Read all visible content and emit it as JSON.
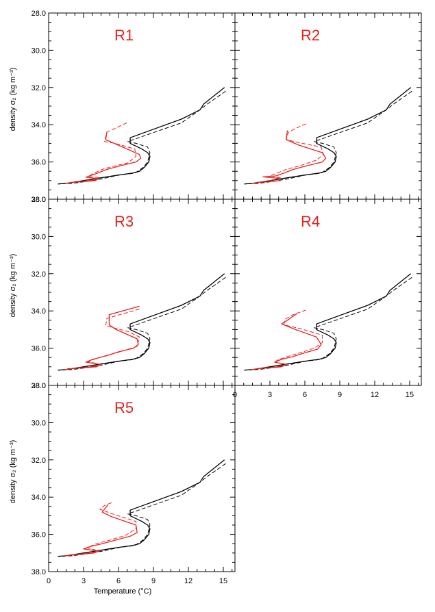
{
  "colors": {
    "black": "#000000",
    "red": "#e8201c"
  },
  "chart_data": {
    "type": "line",
    "xlabel": "Temperature (°C)",
    "ylabel": "density σ₂ (kg m⁻³)",
    "xlim": [
      0,
      16
    ],
    "ylim": [
      38.0,
      28.0
    ],
    "y_inverted": true,
    "xticks": [
      0,
      3,
      6,
      9,
      12,
      15
    ],
    "xtick_labels": [
      "0",
      "3",
      "6",
      "9",
      "12",
      "15"
    ],
    "yticks": [
      28,
      30,
      32,
      34,
      36,
      38
    ],
    "ytick_labels": [
      "28.0",
      "30.0",
      "32.0",
      "34.0",
      "36.0",
      "38.0"
    ],
    "grid": false,
    "panels": [
      {
        "title": "R1",
        "series": [
          {
            "color": "black",
            "dash": false,
            "x": [
              15.1,
              13.3,
              13.0,
              11.4,
              7.0,
              7.0,
              8.0,
              8.5,
              8.7,
              8.6,
              8.2,
              7.8,
              7.2,
              6.0,
              4.5,
              3.0,
              2.0,
              1.5,
              0.8
            ],
            "y": [
              32.0,
              32.9,
              33.2,
              33.7,
              34.7,
              35.0,
              35.3,
              35.5,
              35.7,
              36.0,
              36.3,
              36.5,
              36.6,
              36.7,
              36.85,
              37.0,
              37.1,
              37.15,
              37.18
            ]
          },
          {
            "color": "black",
            "dash": true,
            "x": [
              15.2,
              13.6,
              13.0,
              11.4,
              6.8,
              7.5,
              8.5,
              8.7,
              8.5,
              8.1,
              7.4,
              6.1,
              4.6,
              3.2,
              2.0,
              0.8
            ],
            "y": [
              32.2,
              32.9,
              33.2,
              33.9,
              34.9,
              35.0,
              35.2,
              35.5,
              36.0,
              36.3,
              36.6,
              36.7,
              36.9,
              37.05,
              37.15,
              37.18
            ]
          },
          {
            "color": "red",
            "dash": false,
            "x": [
              5.0,
              4.9,
              6.0,
              7.8,
              7.9,
              7.5,
              6.2,
              5.0,
              4.2,
              3.5,
              3.2,
              4.3,
              4.0,
              3.0,
              2.0,
              1.4
            ],
            "y": [
              34.4,
              34.8,
              35.1,
              35.6,
              35.8,
              36.0,
              36.2,
              36.4,
              36.6,
              36.75,
              36.82,
              36.9,
              37.0,
              37.05,
              37.1,
              37.15
            ]
          },
          {
            "color": "red",
            "dash": true,
            "x": [
              6.7,
              5.7,
              5.0,
              4.8,
              5.7,
              7.4,
              7.5,
              6.8,
              5.4,
              4.6,
              3.9,
              3.4,
              4.4,
              3.6,
              2.6,
              1.8
            ],
            "y": [
              33.9,
              34.2,
              34.4,
              34.9,
              35.0,
              35.3,
              35.7,
              36.05,
              36.25,
              36.4,
              36.6,
              36.78,
              36.85,
              36.98,
              37.05,
              37.1
            ]
          }
        ]
      },
      {
        "title": "R2",
        "series": [
          {
            "color": "black",
            "dash": false,
            "x": [
              15.1,
              13.3,
              13.0,
              11.4,
              7.0,
              7.0,
              8.0,
              8.5,
              8.7,
              8.6,
              8.2,
              7.8,
              7.2,
              6.0,
              4.5,
              3.0,
              2.0,
              1.5,
              0.8
            ],
            "y": [
              32.0,
              32.9,
              33.2,
              33.7,
              34.7,
              35.0,
              35.3,
              35.5,
              35.7,
              36.0,
              36.3,
              36.5,
              36.6,
              36.7,
              36.85,
              37.0,
              37.1,
              37.15,
              37.18
            ]
          },
          {
            "color": "black",
            "dash": true,
            "x": [
              15.2,
              13.6,
              13.0,
              11.4,
              6.8,
              7.5,
              8.5,
              8.7,
              8.5,
              8.1,
              7.4,
              6.1,
              4.6,
              3.2,
              2.0,
              0.8
            ],
            "y": [
              32.2,
              32.9,
              33.2,
              33.9,
              34.9,
              35.0,
              35.2,
              35.5,
              36.0,
              36.3,
              36.6,
              36.7,
              36.9,
              37.05,
              37.15,
              37.18
            ]
          },
          {
            "color": "red",
            "dash": false,
            "x": [
              4.5,
              4.4,
              5.5,
              7.5,
              7.8,
              7.5,
              6.2,
              5.0,
              4.2,
              3.5,
              2.4,
              3.8,
              3.9,
              3.0,
              2.0,
              1.4
            ],
            "y": [
              34.3,
              34.8,
              35.1,
              35.5,
              35.8,
              36.0,
              36.2,
              36.4,
              36.6,
              36.75,
              36.8,
              36.88,
              37.0,
              37.05,
              37.1,
              37.15
            ]
          },
          {
            "color": "red",
            "dash": true,
            "x": [
              6.1,
              5.2,
              4.6,
              4.4,
              5.4,
              7.4,
              7.6,
              7.0,
              5.6,
              4.4,
              3.6,
              3.0,
              3.9,
              3.4,
              2.6,
              1.8
            ],
            "y": [
              33.95,
              34.2,
              34.4,
              34.8,
              34.95,
              35.2,
              35.6,
              35.9,
              36.2,
              36.4,
              36.6,
              36.75,
              36.85,
              36.95,
              37.05,
              37.1
            ]
          }
        ]
      },
      {
        "title": "R3",
        "series": [
          {
            "color": "black",
            "dash": false,
            "x": [
              15.1,
              13.3,
              13.0,
              11.4,
              7.0,
              7.0,
              8.0,
              8.5,
              8.7,
              8.6,
              8.2,
              7.8,
              7.2,
              6.0,
              4.5,
              3.0,
              2.0,
              1.5,
              0.8
            ],
            "y": [
              32.0,
              32.9,
              33.2,
              33.7,
              34.7,
              35.0,
              35.3,
              35.5,
              35.7,
              36.0,
              36.3,
              36.5,
              36.6,
              36.7,
              36.85,
              37.0,
              37.1,
              37.15,
              37.18
            ]
          },
          {
            "color": "black",
            "dash": true,
            "x": [
              15.2,
              13.6,
              13.0,
              11.4,
              6.8,
              7.5,
              8.5,
              8.7,
              8.5,
              8.1,
              7.4,
              6.1,
              4.6,
              3.2,
              2.0,
              0.8
            ],
            "y": [
              32.2,
              32.9,
              33.2,
              33.9,
              34.9,
              35.0,
              35.2,
              35.5,
              36.0,
              36.3,
              36.6,
              36.7,
              36.9,
              37.05,
              37.15,
              37.18
            ]
          },
          {
            "color": "red",
            "dash": false,
            "x": [
              7.8,
              5.2,
              5.2,
              5.8,
              7.6,
              7.7,
              7.3,
              6.0,
              5.0,
              3.8,
              3.2,
              4.5,
              4.1,
              3.0,
              2.0,
              1.4
            ],
            "y": [
              33.75,
              34.2,
              34.75,
              35.0,
              35.5,
              35.8,
              36.0,
              36.2,
              36.4,
              36.6,
              36.75,
              36.88,
              37.0,
              37.05,
              37.1,
              37.15
            ]
          },
          {
            "color": "red",
            "dash": true,
            "x": [
              7.8,
              5.0,
              4.9,
              6.8,
              7.8,
              7.6,
              6.4,
              5.2,
              4.1,
              3.4,
              4.6,
              3.5,
              2.6,
              1.6
            ],
            "y": [
              33.9,
              34.4,
              34.8,
              35.1,
              35.4,
              35.9,
              36.15,
              36.35,
              36.55,
              36.72,
              36.9,
              37.0,
              37.05,
              37.1
            ]
          }
        ]
      },
      {
        "title": "R4",
        "series": [
          {
            "color": "black",
            "dash": false,
            "x": [
              15.1,
              13.3,
              13.0,
              11.4,
              7.0,
              7.0,
              8.0,
              8.5,
              8.7,
              8.6,
              8.2,
              7.8,
              7.2,
              6.0,
              4.5,
              3.0,
              2.0,
              1.5,
              0.8
            ],
            "y": [
              32.0,
              32.9,
              33.2,
              33.7,
              34.7,
              35.0,
              35.3,
              35.5,
              35.7,
              36.0,
              36.3,
              36.5,
              36.6,
              36.7,
              36.85,
              37.0,
              37.1,
              37.15,
              37.18
            ]
          },
          {
            "color": "black",
            "dash": true,
            "x": [
              15.2,
              13.6,
              13.0,
              11.4,
              6.8,
              7.5,
              8.5,
              8.7,
              8.5,
              8.1,
              7.4,
              6.1,
              4.6,
              3.2,
              2.0,
              0.8
            ],
            "y": [
              32.2,
              32.9,
              33.2,
              33.9,
              34.9,
              35.0,
              35.2,
              35.5,
              36.0,
              36.3,
              36.6,
              36.7,
              36.9,
              37.05,
              37.15,
              37.18
            ]
          },
          {
            "color": "red",
            "dash": false,
            "x": [
              5.3,
              4.5,
              4.0,
              5.2,
              7.0,
              7.4,
              7.1,
              6.0,
              5.0,
              4.0,
              3.4,
              4.4,
              4.0,
              3.0,
              2.0,
              1.4
            ],
            "y": [
              34.15,
              34.5,
              34.7,
              35.0,
              35.4,
              35.8,
              36.05,
              36.25,
              36.45,
              36.6,
              36.75,
              36.88,
              37.0,
              37.05,
              37.1,
              37.15
            ]
          },
          {
            "color": "red",
            "dash": true,
            "x": [
              6.1,
              5.0,
              4.3,
              4.2,
              5.6,
              7.5,
              7.5,
              6.8,
              5.6,
              4.5,
              3.7,
              3.4,
              4.5,
              3.6,
              2.6,
              1.8
            ],
            "y": [
              33.95,
              34.2,
              34.45,
              34.75,
              34.95,
              35.3,
              35.7,
              36.0,
              36.25,
              36.45,
              36.62,
              36.75,
              36.88,
              37.0,
              37.05,
              37.1
            ]
          }
        ]
      },
      {
        "title": "R5",
        "series": [
          {
            "color": "black",
            "dash": false,
            "x": [
              15.1,
              13.3,
              13.0,
              11.4,
              7.0,
              7.0,
              8.0,
              8.5,
              8.7,
              8.6,
              8.2,
              7.8,
              7.2,
              6.0,
              4.5,
              3.0,
              2.0,
              1.5,
              0.8
            ],
            "y": [
              32.0,
              32.9,
              33.2,
              33.7,
              34.7,
              35.0,
              35.3,
              35.5,
              35.7,
              36.0,
              36.3,
              36.5,
              36.6,
              36.7,
              36.85,
              37.0,
              37.1,
              37.15,
              37.18
            ]
          },
          {
            "color": "black",
            "dash": true,
            "x": [
              15.2,
              13.6,
              13.0,
              11.4,
              6.8,
              7.5,
              8.5,
              8.7,
              8.5,
              8.1,
              7.4,
              6.1,
              4.6,
              3.2,
              2.0,
              0.8
            ],
            "y": [
              32.2,
              32.9,
              33.2,
              33.9,
              34.9,
              35.0,
              35.2,
              35.5,
              36.0,
              36.3,
              36.6,
              36.7,
              36.9,
              37.05,
              37.15,
              37.18
            ]
          },
          {
            "color": "red",
            "dash": false,
            "x": [
              5.1,
              4.6,
              5.4,
              7.5,
              7.6,
              7.0,
              5.8,
              4.6,
              3.6,
              3.0,
              4.3,
              3.9,
              3.0,
              2.2,
              1.4
            ],
            "y": [
              34.4,
              34.8,
              35.05,
              35.5,
              35.9,
              36.1,
              36.3,
              36.5,
              36.65,
              36.78,
              36.9,
              37.0,
              37.05,
              37.1,
              37.15
            ]
          },
          {
            "color": "red",
            "dash": true,
            "x": [
              5.4,
              4.8,
              4.4,
              5.7,
              7.5,
              7.5,
              6.6,
              5.3,
              4.1,
              3.3,
              4.4,
              3.6,
              2.6,
              1.8
            ],
            "y": [
              34.3,
              34.45,
              34.65,
              34.95,
              35.3,
              35.7,
              36.05,
              36.3,
              36.5,
              36.72,
              36.9,
              37.0,
              37.05,
              37.1
            ]
          }
        ]
      }
    ]
  }
}
